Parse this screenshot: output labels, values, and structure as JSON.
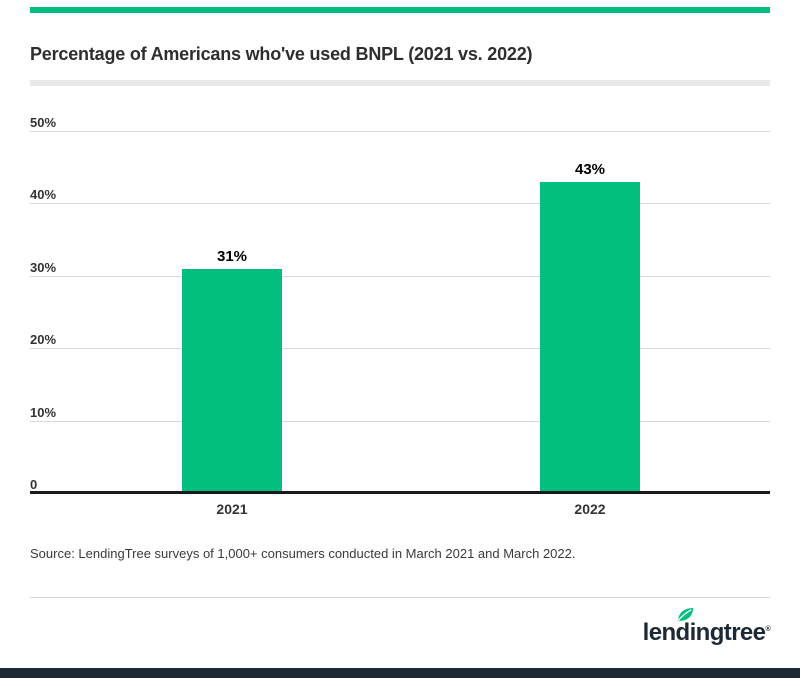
{
  "header": {
    "title": "Percentage of Americans who've used BNPL (2021 vs. 2022)"
  },
  "chart_data": {
    "type": "bar",
    "title": "Percentage of Americans who've used BNPL (2021 vs. 2022)",
    "categories": [
      "2021",
      "2022"
    ],
    "values": [
      31,
      43
    ],
    "value_labels": [
      "31%",
      "43%"
    ],
    "xlabel": "",
    "ylabel": "",
    "ylim": [
      0,
      50
    ],
    "y_ticks": [
      0,
      10,
      20,
      30,
      40,
      50
    ],
    "y_tick_labels": [
      "0",
      "10%",
      "20%",
      "30%",
      "40%",
      "50%"
    ],
    "grid": true,
    "legend": "none",
    "bar_color": "#02bf7e",
    "gridline_color": "#d8d8d8",
    "axis_line_color": "#1a1a1a"
  },
  "source_note": "Source: LendingTree surveys of 1,000+ consumers conducted in March 2021 and March 2022.",
  "branding": {
    "logo_text": "lendingtree",
    "trademark": "®",
    "logo_color": "#1d2a36",
    "leaf_color": "#02bf7e",
    "accent_bar_color": "#02bf7e",
    "footer_bar_color": "#1d2a36"
  }
}
